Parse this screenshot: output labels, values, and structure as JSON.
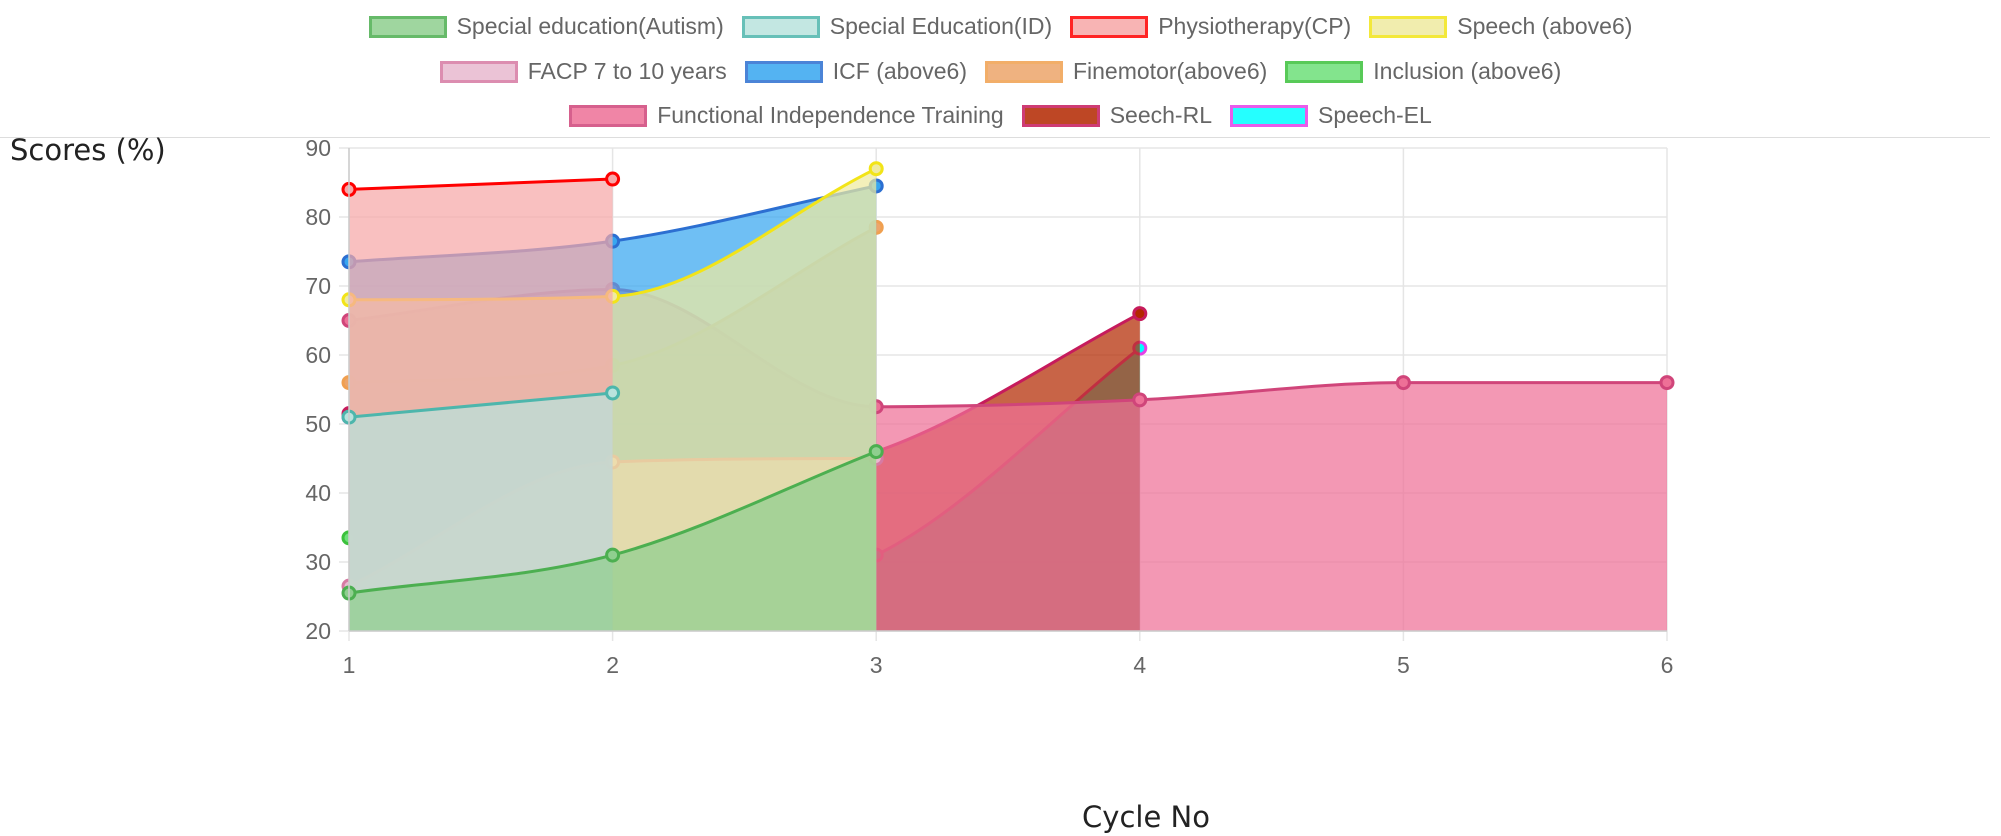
{
  "chart_data": {
    "type": "area",
    "xlabel": "Cycle No",
    "ylabel": "Scores (%)",
    "x": [
      1,
      2,
      3,
      4,
      5,
      6
    ],
    "ylim": [
      20,
      90
    ],
    "yticks": [
      20,
      30,
      40,
      50,
      60,
      70,
      80,
      90
    ],
    "grid": true,
    "legend_position": "top",
    "series": [
      {
        "name": "Special education(Autism)",
        "values": [
          25.5,
          31,
          46,
          null,
          null,
          null
        ],
        "border": "#4caf50",
        "fill": "#8fcf8f"
      },
      {
        "name": "Special Education(ID)",
        "values": [
          51,
          54.5,
          null,
          null,
          null,
          null
        ],
        "border": "#4db6ac",
        "fill": "#b9e3dd"
      },
      {
        "name": "Physiotherapy(CP)",
        "values": [
          84,
          85.5,
          null,
          null,
          null,
          null
        ],
        "border": "#ff0000",
        "fill": "#f7a8a8"
      },
      {
        "name": "Speech (above6)",
        "values": [
          68,
          68.5,
          87,
          null,
          null,
          null
        ],
        "border": "#f2e418",
        "fill": "#efeaa0"
      },
      {
        "name": "FACP 7 to 10 years",
        "values": [
          26.5,
          44.5,
          45,
          null,
          null,
          null
        ],
        "border": "#d77aa3",
        "fill": "#e8b9d0"
      },
      {
        "name": "ICF (above6)",
        "values": [
          73.5,
          76.5,
          84.5,
          null,
          null,
          null
        ],
        "border": "#2c6fd1",
        "fill": "#37a6f0"
      },
      {
        "name": "Finemotor(above6)",
        "values": [
          56,
          58.5,
          78.5,
          null,
          null,
          null
        ],
        "border": "#f0a050",
        "fill": "#eda56a"
      },
      {
        "name": "Inclusion (above6)",
        "values": [
          33.5,
          null,
          null,
          null,
          null,
          null
        ],
        "border": "#3cc13c",
        "fill": "#6ee07a"
      },
      {
        "name": "Functional Independence Training",
        "values": [
          65,
          69.5,
          52.5,
          53.5,
          56,
          56
        ],
        "border": "#d0457a",
        "fill": "#ee7097"
      },
      {
        "name": "Seech-RL",
        "values": [
          51.5,
          40,
          46,
          66,
          null,
          null
        ],
        "border": "#c61b5c",
        "fill": "#b32800"
      },
      {
        "name": "Speech-EL",
        "values": [
          51,
          23.5,
          31,
          61,
          null,
          null
        ],
        "border": "#e540e8",
        "fill": "#00ffff"
      }
    ]
  }
}
